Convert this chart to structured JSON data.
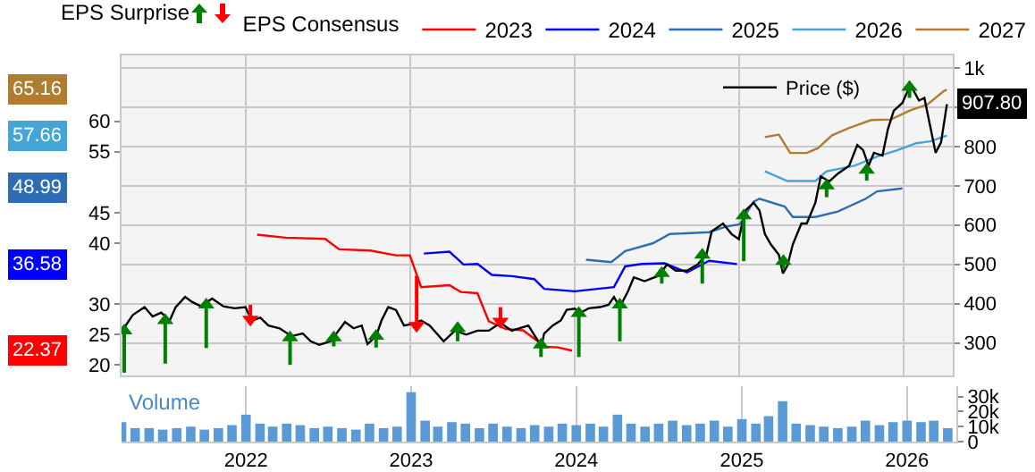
{
  "chart_data": [
    {
      "type": "line",
      "annotations": [
        "EPS Surprise",
        "22.37",
        "36.58",
        "48.99",
        "57.66",
        "65.16"
      ],
      "legend_title": "EPS Consensus",
      "legend": "top",
      "grid": true,
      "marker": "none",
      "line_style": "solid",
      "tick_labels": "y",
      "xlim": [
        "2021-04-01",
        "2026-04-20"
      ],
      "xticks": [
        "2022",
        "2023",
        "2024",
        "2025",
        "2026"
      ],
      "ylim": [
        18.3,
        70.8
      ],
      "yticks": [
        20,
        25,
        30,
        40,
        45,
        55,
        60
      ],
      "y2lim": [
        217,
        1032
      ],
      "y2ticks": [
        300,
        400,
        500,
        600,
        700,
        800,
        {
          "value": 900,
          "label": null
        },
        {
          "value": 1000,
          "label": "1k"
        }
      ],
      "series": [
        {
          "name": "2023",
          "color": "#ff0000",
          "x": [
            "2022-01-27",
            "2022-03-31",
            "2022-06-27",
            "2022-07-28",
            "2022-10-05",
            "2022-12-01",
            "2023-01-01",
            "2023-01-26",
            "2023-03-30",
            "2023-04-24",
            "2023-05-31",
            "2023-06-25",
            "2023-08-02",
            "2023-09-09",
            "2023-10-29",
            "2023-11-26",
            "2023-12-27"
          ],
          "values": [
            41.4,
            40.9,
            40.7,
            39.0,
            38.8,
            38.0,
            38.0,
            32.8,
            33.1,
            32.0,
            31.8,
            27.2,
            25.9,
            25.7,
            23.0,
            22.9,
            22.37
          ]
        },
        {
          "name": "2024",
          "color": "#0000ff",
          "x": [
            "2023-02-01",
            "2023-03-30",
            "2023-04-30",
            "2023-05-31",
            "2023-07-02",
            "2023-08-15",
            "2023-10-04",
            "2023-10-26",
            "2024-01-02",
            "2024-03-29",
            "2024-04-23",
            "2024-05-30",
            "2024-07-19",
            "2024-09-07",
            "2024-10-26",
            "2024-12-27"
          ],
          "values": [
            38.3,
            38.6,
            36.5,
            36.6,
            34.8,
            34.6,
            34.1,
            32.5,
            32.1,
            32.8,
            36.2,
            36.6,
            36.7,
            35.2,
            37.1,
            36.58
          ]
        },
        {
          "name": "2025",
          "color": "#2e6db4",
          "x": [
            "2024-01-27",
            "2024-03-23",
            "2024-04-23",
            "2024-06-24",
            "2024-07-31",
            "2024-10-26",
            "2024-12-02",
            "2025-01-02",
            "2025-02-02",
            "2025-02-15",
            "2025-04-12",
            "2025-04-30",
            "2025-06-19",
            "2025-08-08",
            "2025-10-09",
            "2025-11-03",
            "2025-12-29"
          ],
          "values": [
            37.3,
            36.9,
            38.7,
            40.0,
            41.5,
            41.8,
            42.7,
            43.1,
            46.8,
            47.3,
            46.0,
            44.3,
            44.3,
            45.2,
            47.3,
            48.5,
            48.99
          ]
        },
        {
          "name": "2026",
          "color": "#44a6d6",
          "x": [
            "2025-02-27",
            "2025-04-18",
            "2025-06-19",
            "2025-07-14",
            "2025-09-14",
            "2025-11-03",
            "2025-12-16",
            "2026-01-29",
            "2026-03-01",
            "2026-04-07"
          ],
          "values": [
            51.8,
            50.2,
            50.2,
            51.8,
            52.7,
            54.2,
            55.2,
            56.4,
            56.7,
            57.66
          ]
        },
        {
          "name": "2027",
          "color": "#b07d30",
          "x": [
            "2025-02-27",
            "2025-03-30",
            "2025-04-24",
            "2025-05-31",
            "2025-06-25",
            "2025-07-26",
            "2025-09-02",
            "2025-10-21",
            "2025-12-04",
            "2026-01-16",
            "2026-02-22",
            "2026-04-01",
            "2026-04-07"
          ],
          "values": [
            57.4,
            57.8,
            54.8,
            54.8,
            55.6,
            57.7,
            58.9,
            60.2,
            60.3,
            61.8,
            62.7,
            65.0,
            65.16
          ]
        },
        {
          "name": "Price ($)",
          "color": "#000000",
          "axis": "y2",
          "x": [
            "2021-04-06",
            "2021-04-26",
            "2021-05-22",
            "2021-06-09",
            "2021-06-28",
            "2021-07-17",
            "2021-07-30",
            "2021-08-20",
            "2021-09-05",
            "2021-09-24",
            "2021-10-19",
            "2021-11-13",
            "2021-12-08",
            "2022-01-01",
            "2022-01-15",
            "2022-02-03",
            "2022-02-21",
            "2022-03-18",
            "2022-04-13",
            "2022-05-08",
            "2022-05-26",
            "2022-06-14",
            "2022-07-09",
            "2022-07-22",
            "2022-08-10",
            "2022-08-29",
            "2022-09-16",
            "2022-09-29",
            "2022-10-18",
            "2022-10-30",
            "2022-11-14",
            "2022-12-01",
            "2022-12-19",
            "2023-01-07",
            "2023-01-26",
            "2023-02-14",
            "2023-03-17",
            "2023-04-11",
            "2023-05-06",
            "2023-05-31",
            "2023-06-25",
            "2023-07-21",
            "2023-08-15",
            "2023-09-21",
            "2023-10-20",
            "2023-10-26",
            "2023-11-14",
            "2023-12-02",
            "2023-12-15",
            "2024-01-02",
            "2024-01-15",
            "2024-02-02",
            "2024-02-27",
            "2024-03-17",
            "2024-03-29",
            "2024-04-11",
            "2024-04-29",
            "2024-05-12",
            "2024-06-05",
            "2024-07-06",
            "2024-07-25",
            "2024-08-13",
            "2024-09-07",
            "2024-10-01",
            "2024-10-20",
            "2024-11-01",
            "2024-11-26",
            "2024-12-15",
            "2024-12-31",
            "2025-01-09",
            "2025-01-15",
            "2025-02-02",
            "2025-02-15",
            "2025-02-27",
            "2025-03-12",
            "2025-03-30",
            "2025-04-08",
            "2025-04-18",
            "2025-04-30",
            "2025-05-19",
            "2025-05-31",
            "2025-06-19",
            "2025-07-01",
            "2025-07-20",
            "2025-08-08",
            "2025-09-02",
            "2025-09-20",
            "2025-10-03",
            "2025-10-15",
            "2025-10-27",
            "2025-11-15",
            "2025-11-27",
            "2025-12-10",
            "2025-12-29",
            "2026-01-16",
            "2026-02-04",
            "2026-02-16",
            "2026-03-01",
            "2026-03-13",
            "2026-03-25",
            "2026-04-07"
          ],
          "values": [
            337,
            371,
            391,
            367,
            377,
            357,
            391,
            417,
            404,
            393,
            413,
            393,
            388,
            391,
            357,
            364,
            344,
            337,
            317,
            324,
            304,
            295,
            304,
            324,
            353,
            337,
            344,
            297,
            317,
            357,
            391,
            384,
            344,
            348,
            357,
            344,
            304,
            331,
            321,
            331,
            331,
            351,
            331,
            344,
            291,
            324,
            344,
            357,
            384,
            387,
            377,
            388,
            391,
            397,
            417,
            391,
            431,
            467,
            457,
            471,
            500,
            484,
            484,
            500,
            524,
            584,
            604,
            577,
            564,
            610,
            637,
            657,
            637,
            577,
            551,
            524,
            477,
            497,
            551,
            604,
            604,
            657,
            724,
            711,
            731,
            751,
            804,
            791,
            751,
            784,
            777,
            844,
            891,
            911,
            957,
            917,
            924,
            851,
            784,
            811,
            907.8
          ],
          "value_labels": [
            null,
            null,
            null,
            null,
            null,
            null,
            null,
            null,
            null,
            null,
            null,
            null,
            null,
            null,
            null,
            null,
            null,
            null,
            null,
            null,
            null,
            null,
            null,
            null,
            null,
            null,
            null,
            null,
            null,
            null,
            null,
            null,
            null,
            null,
            null,
            null,
            null,
            null,
            null,
            null,
            null,
            null,
            null,
            null,
            null,
            null,
            null,
            null,
            null,
            null,
            null,
            null,
            null,
            null,
            null,
            null,
            null,
            null,
            null,
            null,
            null,
            null,
            null,
            null,
            null,
            null,
            null,
            null,
            null,
            null,
            null,
            null,
            null,
            null,
            null,
            null,
            null,
            null,
            null,
            null,
            null,
            null,
            null,
            null,
            null,
            null,
            null,
            null,
            null,
            null,
            null,
            null,
            null,
            null,
            null,
            null,
            null,
            null,
            null,
            null,
            "907.80"
          ]
        },
        {
          "type": "scatter",
          "axis": "y2",
          "color": "#008000",
          "marker": "triangle",
          "x": [
            "2021-04-07",
            "2021-07-07",
            "2021-10-06",
            "2022-04-10",
            "2022-07-16",
            "2022-10-18",
            "2023-04-17",
            "2023-10-19",
            "2024-01-11",
            "2024-04-11",
            "2024-07-13",
            "2024-10-11",
            "2025-01-11",
            "2025-04-09",
            "2025-07-14",
            "2025-10-11",
            "2026-01-14"
          ],
          "values": [
            331,
            357,
            397,
            313,
            313,
            317,
            337,
            295,
            375,
            397,
            477,
            524,
            624,
            508,
            700,
            740,
            951
          ],
          "errors": [
            [
              224,
              331
            ],
            [
              247,
              357
            ],
            [
              287,
              397
            ],
            [
              244,
              313
            ],
            [
              291,
              313
            ],
            [
              288,
              317
            ],
            [
              304,
              337
            ],
            [
              264,
              295
            ],
            [
              264,
              375
            ],
            [
              304,
              397
            ],
            [
              451,
              477
            ],
            [
              451,
              524
            ],
            [
              508,
              624
            ],
            [
              487,
              508
            ],
            [
              671,
              700
            ],
            [
              713,
              740
            ],
            [
              924,
              951
            ]
          ]
        },
        {
          "type": "scatter",
          "axis": "y2",
          "color": "#ff0000",
          "marker": "triangle",
          "x": [
            "2022-01-12",
            "2023-01-16",
            "2023-07-21"
          ],
          "values": [
            360,
            344,
            355
          ],
          "errors": [
            [
              360,
              397
            ],
            [
              344,
              471
            ],
            [
              355,
              391
            ]
          ]
        }
      ]
    },
    {
      "type": "bar",
      "title": "Volume",
      "color": "#5b9bd5",
      "grid": "x",
      "xlim": [
        "2021-04-01",
        "2026-04-20"
      ],
      "xticks": [
        "2022",
        "2023",
        "2024",
        "2025",
        "2026"
      ],
      "ylim": [
        0,
        37000
      ],
      "yticks": [
        0,
        {
          "value": 10000,
          "label": "10k"
        },
        {
          "value": 20000,
          "label": "20k"
        },
        {
          "value": 30000,
          "label": "30k"
        }
      ],
      "x": [
        "2021-04",
        "2021-05",
        "2021-06",
        "2021-07",
        "2021-08",
        "2021-09",
        "2021-10",
        "2021-11",
        "2021-12",
        "2022-01",
        "2022-02",
        "2022-03",
        "2022-04",
        "2022-05",
        "2022-06",
        "2022-07",
        "2022-08",
        "2022-09",
        "2022-10",
        "2022-11",
        "2022-12",
        "2023-01",
        "2023-02",
        "2023-03",
        "2023-04",
        "2023-05",
        "2023-06",
        "2023-07",
        "2023-08",
        "2023-09",
        "2023-10",
        "2023-11",
        "2023-12",
        "2024-01",
        "2024-02",
        "2024-03",
        "2024-04",
        "2024-05",
        "2024-06",
        "2024-07",
        "2024-08",
        "2024-09",
        "2024-10",
        "2024-11",
        "2024-12",
        "2025-01",
        "2025-02",
        "2025-03",
        "2025-04",
        "2025-05",
        "2025-06",
        "2025-07",
        "2025-08",
        "2025-09",
        "2025-10",
        "2025-11",
        "2025-12",
        "2026-01",
        "2026-02",
        "2026-03",
        "2026-04"
      ],
      "values": [
        13000,
        9000,
        9000,
        8000,
        9000,
        10000,
        8000,
        9000,
        11000,
        18000,
        12000,
        10000,
        12000,
        11000,
        9000,
        10000,
        9000,
        8000,
        12000,
        9000,
        10000,
        33000,
        14000,
        10000,
        13000,
        12000,
        9000,
        12000,
        10000,
        9000,
        11000,
        10000,
        12000,
        11000,
        12000,
        10000,
        18000,
        12000,
        10000,
        12000,
        14000,
        11000,
        12000,
        14000,
        10000,
        15000,
        12000,
        17000,
        27000,
        12000,
        11000,
        10000,
        9000,
        10000,
        14000,
        11000,
        13000,
        14000,
        13000,
        14000,
        9000
      ]
    }
  ]
}
